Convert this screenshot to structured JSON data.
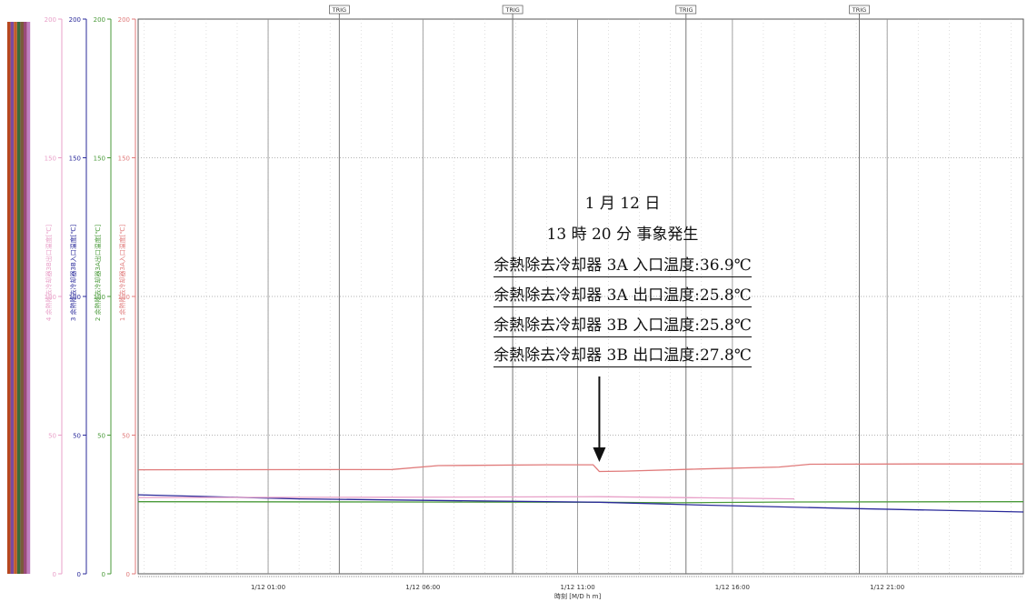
{
  "chart_data": {
    "type": "line",
    "x_axis": {
      "ticks": [
        "1/12 01:00",
        "1/12 06:00",
        "1/12 11:00",
        "1/12 16:00",
        "1/12 21:00"
      ],
      "label": "時刻 [M/D h m]"
    },
    "y_axes": [
      {
        "ticks": [
          "0",
          "50",
          "100",
          "150",
          "200"
        ],
        "color": "#e07a7a",
        "label": "1 余熱除去冷却器3A入口温度[℃]"
      },
      {
        "ticks": [
          "0",
          "50",
          "100",
          "150",
          "200"
        ],
        "color": "#4a9a3a",
        "label": "2 余熱除去冷却器3A出口温度[℃]"
      },
      {
        "ticks": [
          "0",
          "50",
          "100",
          "150",
          "200"
        ],
        "color": "#2a2a9a",
        "label": "3 余熱除去冷却器3B入口温度[℃]"
      },
      {
        "ticks": [
          "0",
          "50",
          "100",
          "150",
          "200"
        ],
        "color": "#e8a0c8",
        "label": "4 余熱除去冷却器3B出口温度[℃]"
      }
    ],
    "ylim": [
      0,
      200
    ],
    "trig_label": "TRIG",
    "trig_x": [
      3.3,
      8.9,
      14.5,
      20.1
    ],
    "xlim": [
      -3.2,
      25.4
    ],
    "grid": true,
    "series": [
      {
        "name": "1 余熱除去冷却器3A入口温度[℃]",
        "color": "#e07a7a",
        "x": [
          -3.2,
          5.0,
          6.5,
          10.0,
          11.5,
          11.7,
          12.5,
          15.0,
          17.5,
          18.5,
          22.0,
          25.4
        ],
        "y": [
          37.5,
          37.6,
          39.0,
          39.3,
          39.3,
          36.9,
          37.0,
          37.8,
          38.5,
          39.5,
          39.6,
          39.6
        ]
      },
      {
        "name": "2 余熱除去冷却器3A出口温度[℃]",
        "color": "#4a9a3a",
        "x": [
          -3.2,
          5.0,
          11.7,
          14.0,
          18.0,
          25.4
        ],
        "y": [
          26.0,
          25.9,
          25.8,
          25.6,
          25.9,
          26.0
        ]
      },
      {
        "name": "3 余熱除去冷却器3B入口温度[℃]",
        "color": "#2a2a9a",
        "x": [
          -3.2,
          2.0,
          6.0,
          11.7,
          15.0,
          20.0,
          25.4
        ],
        "y": [
          28.5,
          27.0,
          26.5,
          25.8,
          24.8,
          23.5,
          22.3
        ]
      },
      {
        "name": "4 余熱除去冷却器3B出口温度[℃]",
        "color": "#e8a0c8",
        "x": [
          -3.2,
          5.0,
          11.7,
          15.0,
          18.0
        ],
        "y": [
          27.5,
          27.6,
          27.8,
          27.4,
          27.0
        ]
      }
    ],
    "annotation": {
      "date": "1 月 12 日",
      "event": "13 時 20 分  事象発生",
      "lines": [
        "余熱除去冷却器 3A 入口温度:36.9℃",
        "余熱除去冷却器 3A 出口温度:25.8℃",
        "余熱除去冷却器 3B 入口温度:25.8℃",
        "余熱除去冷却器 3B 出口温度:27.8℃"
      ],
      "arrow_x": 11.7
    }
  }
}
